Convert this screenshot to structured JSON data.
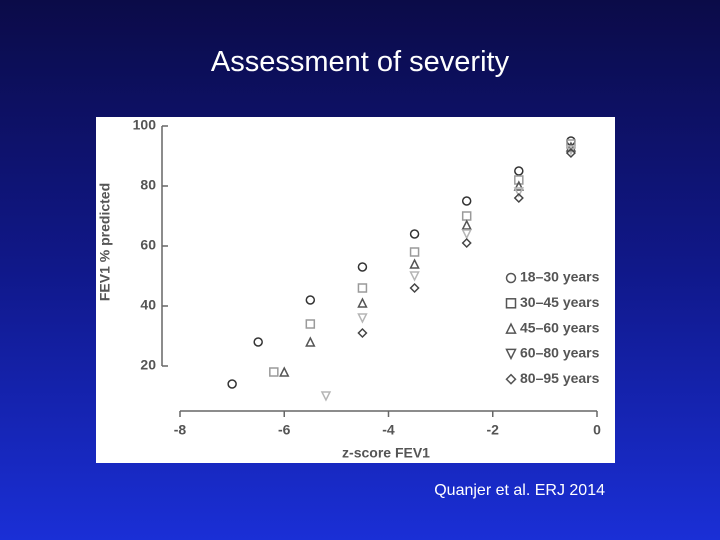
{
  "slide_title": "Assessment of severity",
  "citation": "Quanjer et al. ERJ 2014",
  "chart_data": {
    "type": "scatter",
    "xlabel": "z-score FEV1",
    "ylabel": "FEV1 % predicted",
    "xlim": [
      -8,
      0
    ],
    "ylim": [
      5,
      100
    ],
    "xticks": [
      -8,
      -6,
      -4,
      -2,
      0
    ],
    "yticks": [
      20,
      40,
      60,
      80,
      100
    ],
    "legend": "lower right",
    "series": [
      {
        "name": "18–30 years",
        "color": "#333333",
        "marker": "circle",
        "x": [
          -0.5,
          -1.5,
          -2.5,
          -3.5,
          -4.5,
          -5.5,
          -6.5,
          -7
        ],
        "values": [
          95,
          85,
          75,
          64,
          53,
          42,
          28,
          14
        ]
      },
      {
        "name": "30–45 years",
        "color": "#9a9a9a",
        "marker": "square",
        "x": [
          -0.5,
          -1.5,
          -2.5,
          -3.5,
          -4.5,
          -5.5,
          -6.2
        ],
        "values": [
          94,
          82,
          70,
          58,
          46,
          34,
          18
        ]
      },
      {
        "name": "45–60 years",
        "color": "#555555",
        "marker": "triangle",
        "x": [
          -0.5,
          -1.5,
          -2.5,
          -3.5,
          -4.5,
          -5.5,
          -6
        ],
        "values": [
          93,
          80,
          67,
          54,
          41,
          28,
          18
        ]
      },
      {
        "name": "60–80 years",
        "color": "#b5b5b5",
        "marker": "triangle-down",
        "x": [
          -0.5,
          -1.5,
          -2.5,
          -3.5,
          -4.5,
          -5.2
        ],
        "values": [
          92,
          78,
          64,
          50,
          36,
          10
        ]
      },
      {
        "name": "80–95 years",
        "color": "#444444",
        "marker": "diamond",
        "x": [
          -0.5,
          -1.5,
          -2.5,
          -3.5,
          -4.5
        ],
        "values": [
          91,
          76,
          61,
          46,
          31
        ]
      }
    ]
  }
}
